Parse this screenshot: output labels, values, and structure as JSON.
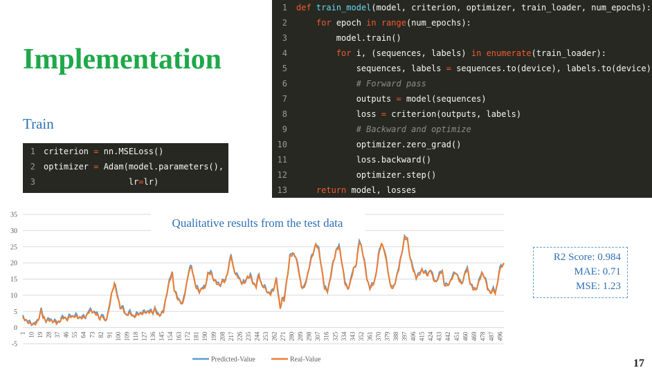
{
  "slide": {
    "title": "Implementation",
    "subtitle": "Train",
    "page_number": "17"
  },
  "code_small": {
    "lines": [
      {
        "n": "1",
        "html": "criterion = nn.MSELoss()"
      },
      {
        "n": "2",
        "html": "optimizer = Adam(model.parameters(),"
      },
      {
        "n": "3",
        "html": "                 lr=lr)"
      }
    ]
  },
  "code_big": {
    "lines": [
      {
        "n": "1",
        "text": "def train_model(model, criterion, optimizer, train_loader, num_epochs):"
      },
      {
        "n": "2",
        "text": "    for epoch in range(num_epochs):"
      },
      {
        "n": "3",
        "text": "        model.train()"
      },
      {
        "n": "4",
        "text": "        for i, (sequences, labels) in enumerate(train_loader):"
      },
      {
        "n": "5",
        "text": "            sequences, labels = sequences.to(device), labels.to(device)"
      },
      {
        "n": "6",
        "text": "            # Forward pass"
      },
      {
        "n": "7",
        "text": "            outputs = model(sequences)"
      },
      {
        "n": "8",
        "text": "            loss = criterion(outputs, labels)"
      },
      {
        "n": "9",
        "text": "            # Backward and optimize"
      },
      {
        "n": "10",
        "text": "            optimizer.zero_grad()"
      },
      {
        "n": "11",
        "text": "            loss.backward()"
      },
      {
        "n": "12",
        "text": "            optimizer.step()"
      },
      {
        "n": "13",
        "text": "    return model, losses"
      }
    ]
  },
  "metrics": {
    "r2": "R2 Score: 0.984",
    "mae": "MAE: 0.71",
    "mse": "MSE: 1.23"
  },
  "chart_data": {
    "type": "line",
    "title": "Qualitative results from the test data",
    "ylim": [
      -5,
      35
    ],
    "yticks": [
      -5,
      0,
      5,
      10,
      15,
      20,
      25,
      30,
      35
    ],
    "x_start": 1,
    "x_end": 500,
    "xtick_step": 9,
    "grid": true,
    "legend": "bottom-center",
    "colors": {
      "predicted": "#5b9bd5",
      "real": "#ed7d31"
    },
    "series": [
      {
        "name": "Predicted-Value",
        "key": "predicted"
      },
      {
        "name": "Real-Value",
        "key": "real"
      }
    ],
    "keypoints": [
      [
        1,
        2.8
      ],
      [
        5,
        2
      ],
      [
        8,
        1.5
      ],
      [
        12,
        0.8
      ],
      [
        15,
        1.2
      ],
      [
        18,
        3.5
      ],
      [
        20,
        5.5
      ],
      [
        22,
        2.8
      ],
      [
        25,
        2.2
      ],
      [
        28,
        2.5
      ],
      [
        32,
        1.8
      ],
      [
        36,
        1.5
      ],
      [
        40,
        2.2
      ],
      [
        44,
        3
      ],
      [
        47,
        2.7
      ],
      [
        50,
        3.4
      ],
      [
        53,
        3.2
      ],
      [
        56,
        3.6
      ],
      [
        60,
        3
      ],
      [
        63,
        2.8
      ],
      [
        66,
        3.4
      ],
      [
        69,
        4.8
      ],
      [
        72,
        5
      ],
      [
        75,
        4.6
      ],
      [
        78,
        4.2
      ],
      [
        81,
        2.6
      ],
      [
        84,
        3.5
      ],
      [
        86,
        2
      ],
      [
        88,
        3.2
      ],
      [
        90,
        5
      ],
      [
        93,
        10
      ],
      [
        96,
        13.8
      ],
      [
        99,
        10
      ],
      [
        102,
        6
      ],
      [
        105,
        5.8
      ],
      [
        108,
        4
      ],
      [
        112,
        4.2
      ],
      [
        116,
        3.5
      ],
      [
        120,
        4
      ],
      [
        124,
        4.2
      ],
      [
        128,
        5
      ],
      [
        132,
        4.6
      ],
      [
        136,
        4.8
      ],
      [
        138,
        6
      ],
      [
        141,
        3.6
      ],
      [
        144,
        4
      ],
      [
        147,
        5.2
      ],
      [
        150,
        10
      ],
      [
        153,
        14
      ],
      [
        156,
        17
      ],
      [
        158,
        12
      ],
      [
        161,
        9
      ],
      [
        164,
        8
      ],
      [
        167,
        7.5
      ],
      [
        170,
        12
      ],
      [
        173,
        17
      ],
      [
        176,
        19
      ],
      [
        178,
        16
      ],
      [
        181,
        12
      ],
      [
        184,
        11
      ],
      [
        187,
        12.5
      ],
      [
        190,
        12
      ],
      [
        193,
        16.5
      ],
      [
        196,
        17
      ],
      [
        199,
        15
      ],
      [
        202,
        13.5
      ],
      [
        205,
        13
      ],
      [
        208,
        14.5
      ],
      [
        211,
        14
      ],
      [
        214,
        18
      ],
      [
        217,
        22.5
      ],
      [
        219,
        19
      ],
      [
        222,
        16
      ],
      [
        225,
        15.5
      ],
      [
        228,
        14
      ],
      [
        231,
        13.5
      ],
      [
        234,
        15.5
      ],
      [
        237,
        16
      ],
      [
        240,
        13.5
      ],
      [
        243,
        12.5
      ],
      [
        246,
        16.5
      ],
      [
        249,
        13
      ],
      [
        252,
        12
      ],
      [
        255,
        11
      ],
      [
        258,
        10.5
      ],
      [
        261,
        11.5
      ],
      [
        264,
        15
      ],
      [
        266,
        10
      ],
      [
        268,
        6
      ],
      [
        270,
        9
      ],
      [
        272,
        8
      ],
      [
        275,
        15
      ],
      [
        278,
        22
      ],
      [
        281,
        22.5
      ],
      [
        284,
        22
      ],
      [
        287,
        18
      ],
      [
        290,
        12.5
      ],
      [
        293,
        12
      ],
      [
        296,
        16
      ],
      [
        299,
        20
      ],
      [
        302,
        22.5
      ],
      [
        305,
        26
      ],
      [
        308,
        24
      ],
      [
        311,
        18
      ],
      [
        314,
        12
      ],
      [
        317,
        11.5
      ],
      [
        320,
        15
      ],
      [
        323,
        20
      ],
      [
        326,
        24
      ],
      [
        329,
        25
      ],
      [
        332,
        20
      ],
      [
        335,
        14
      ],
      [
        338,
        12
      ],
      [
        341,
        14
      ],
      [
        344,
        18
      ],
      [
        347,
        20
      ],
      [
        350,
        26.5
      ],
      [
        352,
        25
      ],
      [
        355,
        21
      ],
      [
        358,
        15
      ],
      [
        361,
        12
      ],
      [
        364,
        13
      ],
      [
        367,
        16
      ],
      [
        370,
        22
      ],
      [
        373,
        26
      ],
      [
        376,
        24
      ],
      [
        379,
        19
      ],
      [
        382,
        13
      ],
      [
        385,
        12
      ],
      [
        388,
        15
      ],
      [
        391,
        18
      ],
      [
        394,
        23
      ],
      [
        397,
        28
      ],
      [
        400,
        27
      ],
      [
        403,
        21
      ],
      [
        406,
        18
      ],
      [
        409,
        15.5
      ],
      [
        412,
        16
      ],
      [
        415,
        18
      ],
      [
        418,
        17
      ],
      [
        421,
        16
      ],
      [
        424,
        18
      ],
      [
        427,
        15
      ],
      [
        430,
        14
      ],
      [
        433,
        16
      ],
      [
        436,
        18
      ],
      [
        438,
        13.5
      ],
      [
        441,
        12.5
      ],
      [
        444,
        14
      ],
      [
        447,
        16
      ],
      [
        450,
        17
      ],
      [
        453,
        15
      ],
      [
        456,
        13.5
      ],
      [
        459,
        16
      ],
      [
        462,
        18
      ],
      [
        465,
        14
      ],
      [
        468,
        12
      ],
      [
        471,
        11.5
      ],
      [
        474,
        14
      ],
      [
        477,
        17
      ],
      [
        480,
        15.5
      ],
      [
        483,
        12
      ],
      [
        486,
        11
      ],
      [
        489,
        11.5
      ],
      [
        491,
        10.5
      ],
      [
        493,
        13
      ],
      [
        495,
        17
      ],
      [
        497,
        19
      ],
      [
        500,
        19.5
      ]
    ]
  }
}
